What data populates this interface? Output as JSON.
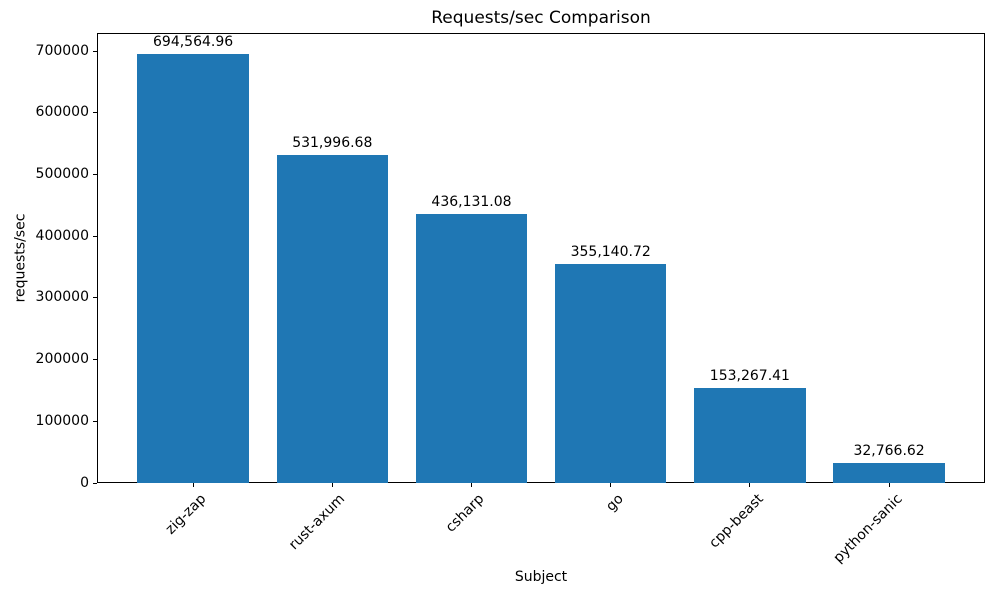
{
  "chart_data": {
    "type": "bar",
    "title": "Requests/sec Comparison",
    "xlabel": "Subject",
    "ylabel": "requests/sec",
    "categories": [
      "zig-zap",
      "rust-axum",
      "csharp",
      "go",
      "cpp-beast",
      "python-sanic"
    ],
    "values": [
      694564.96,
      531996.68,
      436131.08,
      355140.72,
      153267.41,
      32766.62
    ],
    "bar_labels": [
      "694,564.96",
      "531,996.68",
      "436,131.08",
      "355,140.72",
      "153,267.41",
      "32,766.62"
    ],
    "ylim": [
      0,
      729293
    ],
    "yticks": [
      0,
      100000,
      200000,
      300000,
      400000,
      500000,
      600000,
      700000
    ],
    "ytick_labels": [
      "0",
      "100000",
      "200000",
      "300000",
      "400000",
      "500000",
      "600000",
      "700000"
    ],
    "bar_color": "#1f77b4",
    "text_color": "#000000",
    "grid": false,
    "legend_position": "none",
    "x_tick_rotation_deg": 45
  }
}
